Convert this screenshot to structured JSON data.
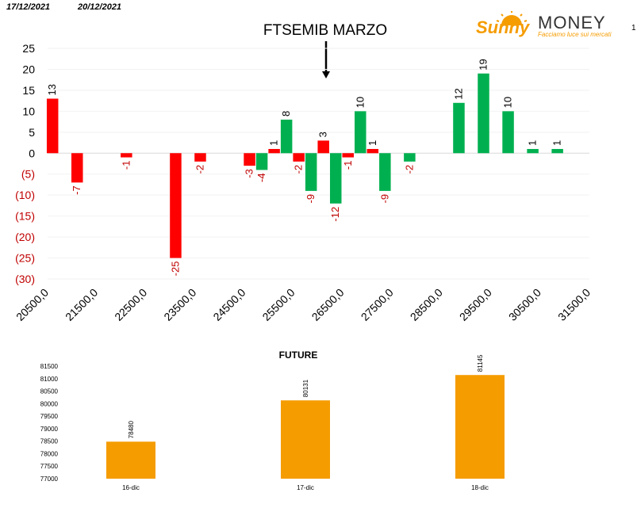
{
  "header": {
    "date_from": "17/12/2021",
    "date_to": "20/12/2021",
    "page_number": "1",
    "logo_brand_left": "Sunny",
    "logo_brand_right": "MONEY",
    "logo_tagline": "Facciamo luce sui mercati",
    "main_title": "FTSEMIB MARZO"
  },
  "colors": {
    "negative": "#FF0000",
    "positive": "#00B050",
    "future_bar": "#F59C00",
    "negative_label": "#C00000",
    "logo_orange": "#F59C00",
    "logo_dark": "#333333"
  },
  "chart_data": [
    {
      "type": "bar",
      "title": "FTSEMIB MARZO",
      "x_tick_labels": [
        "20500,0",
        "21500,0",
        "22500,0",
        "23500,0",
        "24500,0",
        "25500,0",
        "26500,0",
        "27500,0",
        "28500,0",
        "29500,0",
        "30500,0",
        "31500,0"
      ],
      "xlim": [
        20500,
        31500
      ],
      "ylim": [
        -30,
        25
      ],
      "y_ticks": [
        25,
        20,
        15,
        10,
        5,
        0,
        -5,
        -10,
        -15,
        -20,
        -25,
        -30
      ],
      "y_tick_labels": [
        "25",
        "20",
        "15",
        "10",
        "5",
        "0",
        "(5)",
        "(10)",
        "(15)",
        "(20)",
        "(25)",
        "(30)"
      ],
      "series": [
        {
          "color_key": "negative",
          "points": [
            {
              "x": 20600,
              "y": 13
            },
            {
              "x": 21100,
              "y": -7
            },
            {
              "x": 22100,
              "y": -1
            },
            {
              "x": 23100,
              "y": -25
            },
            {
              "x": 23600,
              "y": -2
            },
            {
              "x": 24600,
              "y": -3
            },
            {
              "x": 25100,
              "y": 1
            },
            {
              "x": 25600,
              "y": -2
            },
            {
              "x": 26100,
              "y": 3
            },
            {
              "x": 26600,
              "y": -1
            },
            {
              "x": 27100,
              "y": 1
            }
          ]
        },
        {
          "color_key": "positive",
          "points": [
            {
              "x": 24850,
              "y": -4
            },
            {
              "x": 25350,
              "y": 8
            },
            {
              "x": 25850,
              "y": -9
            },
            {
              "x": 26350,
              "y": -12
            },
            {
              "x": 26850,
              "y": 10
            },
            {
              "x": 27350,
              "y": -9
            },
            {
              "x": 27850,
              "y": -2
            },
            {
              "x": 28850,
              "y": 12
            },
            {
              "x": 29350,
              "y": 19
            },
            {
              "x": 29850,
              "y": 10
            },
            {
              "x": 30350,
              "y": 1
            },
            {
              "x": 30850,
              "y": 1
            }
          ]
        }
      ],
      "annotation": "arrow pointing down at 26300"
    },
    {
      "type": "bar",
      "title": "FUTURE",
      "categories": [
        "16-dic",
        "17-dic",
        "18-dic"
      ],
      "values": [
        78480,
        80131,
        81145
      ],
      "ylim": [
        77000,
        81500
      ],
      "y_ticks": [
        81500,
        81000,
        80500,
        80000,
        79500,
        79000,
        78500,
        78000,
        77500,
        77000
      ],
      "color_key": "future_bar"
    }
  ]
}
